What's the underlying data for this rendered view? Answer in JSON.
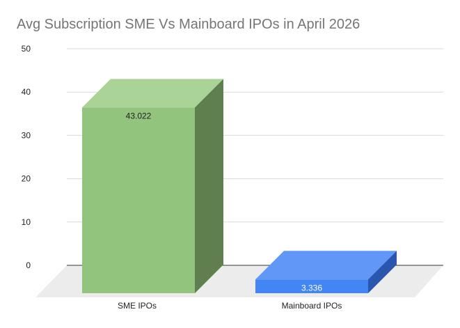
{
  "chart_data": {
    "type": "bar",
    "title": "Avg Subscription SME Vs Mainboard IPOs in April 2026",
    "xlabel": "",
    "ylabel": "",
    "categories": [
      "SME IPOs",
      "Mainboard IPOs"
    ],
    "values": [
      43.022,
      3.336
    ],
    "data_labels": [
      "43.022",
      "3.336"
    ],
    "ylim": [
      0,
      50
    ],
    "yticks": [
      "0",
      "10",
      "20",
      "30",
      "40",
      "50"
    ],
    "grid": true,
    "legend": "none",
    "style": "3d",
    "colors": {
      "bars": [
        "#93c47d",
        "#4285f4"
      ],
      "bar_tops": [
        "#aad398",
        "#6197f6"
      ],
      "bar_sides": [
        "#5f7f4f",
        "#2b56b0"
      ],
      "floor": "#ececec",
      "gridline": "#d9d9d9",
      "baseline": "#333333",
      "data_label_text": [
        "#222222",
        "#ffffff"
      ]
    }
  }
}
